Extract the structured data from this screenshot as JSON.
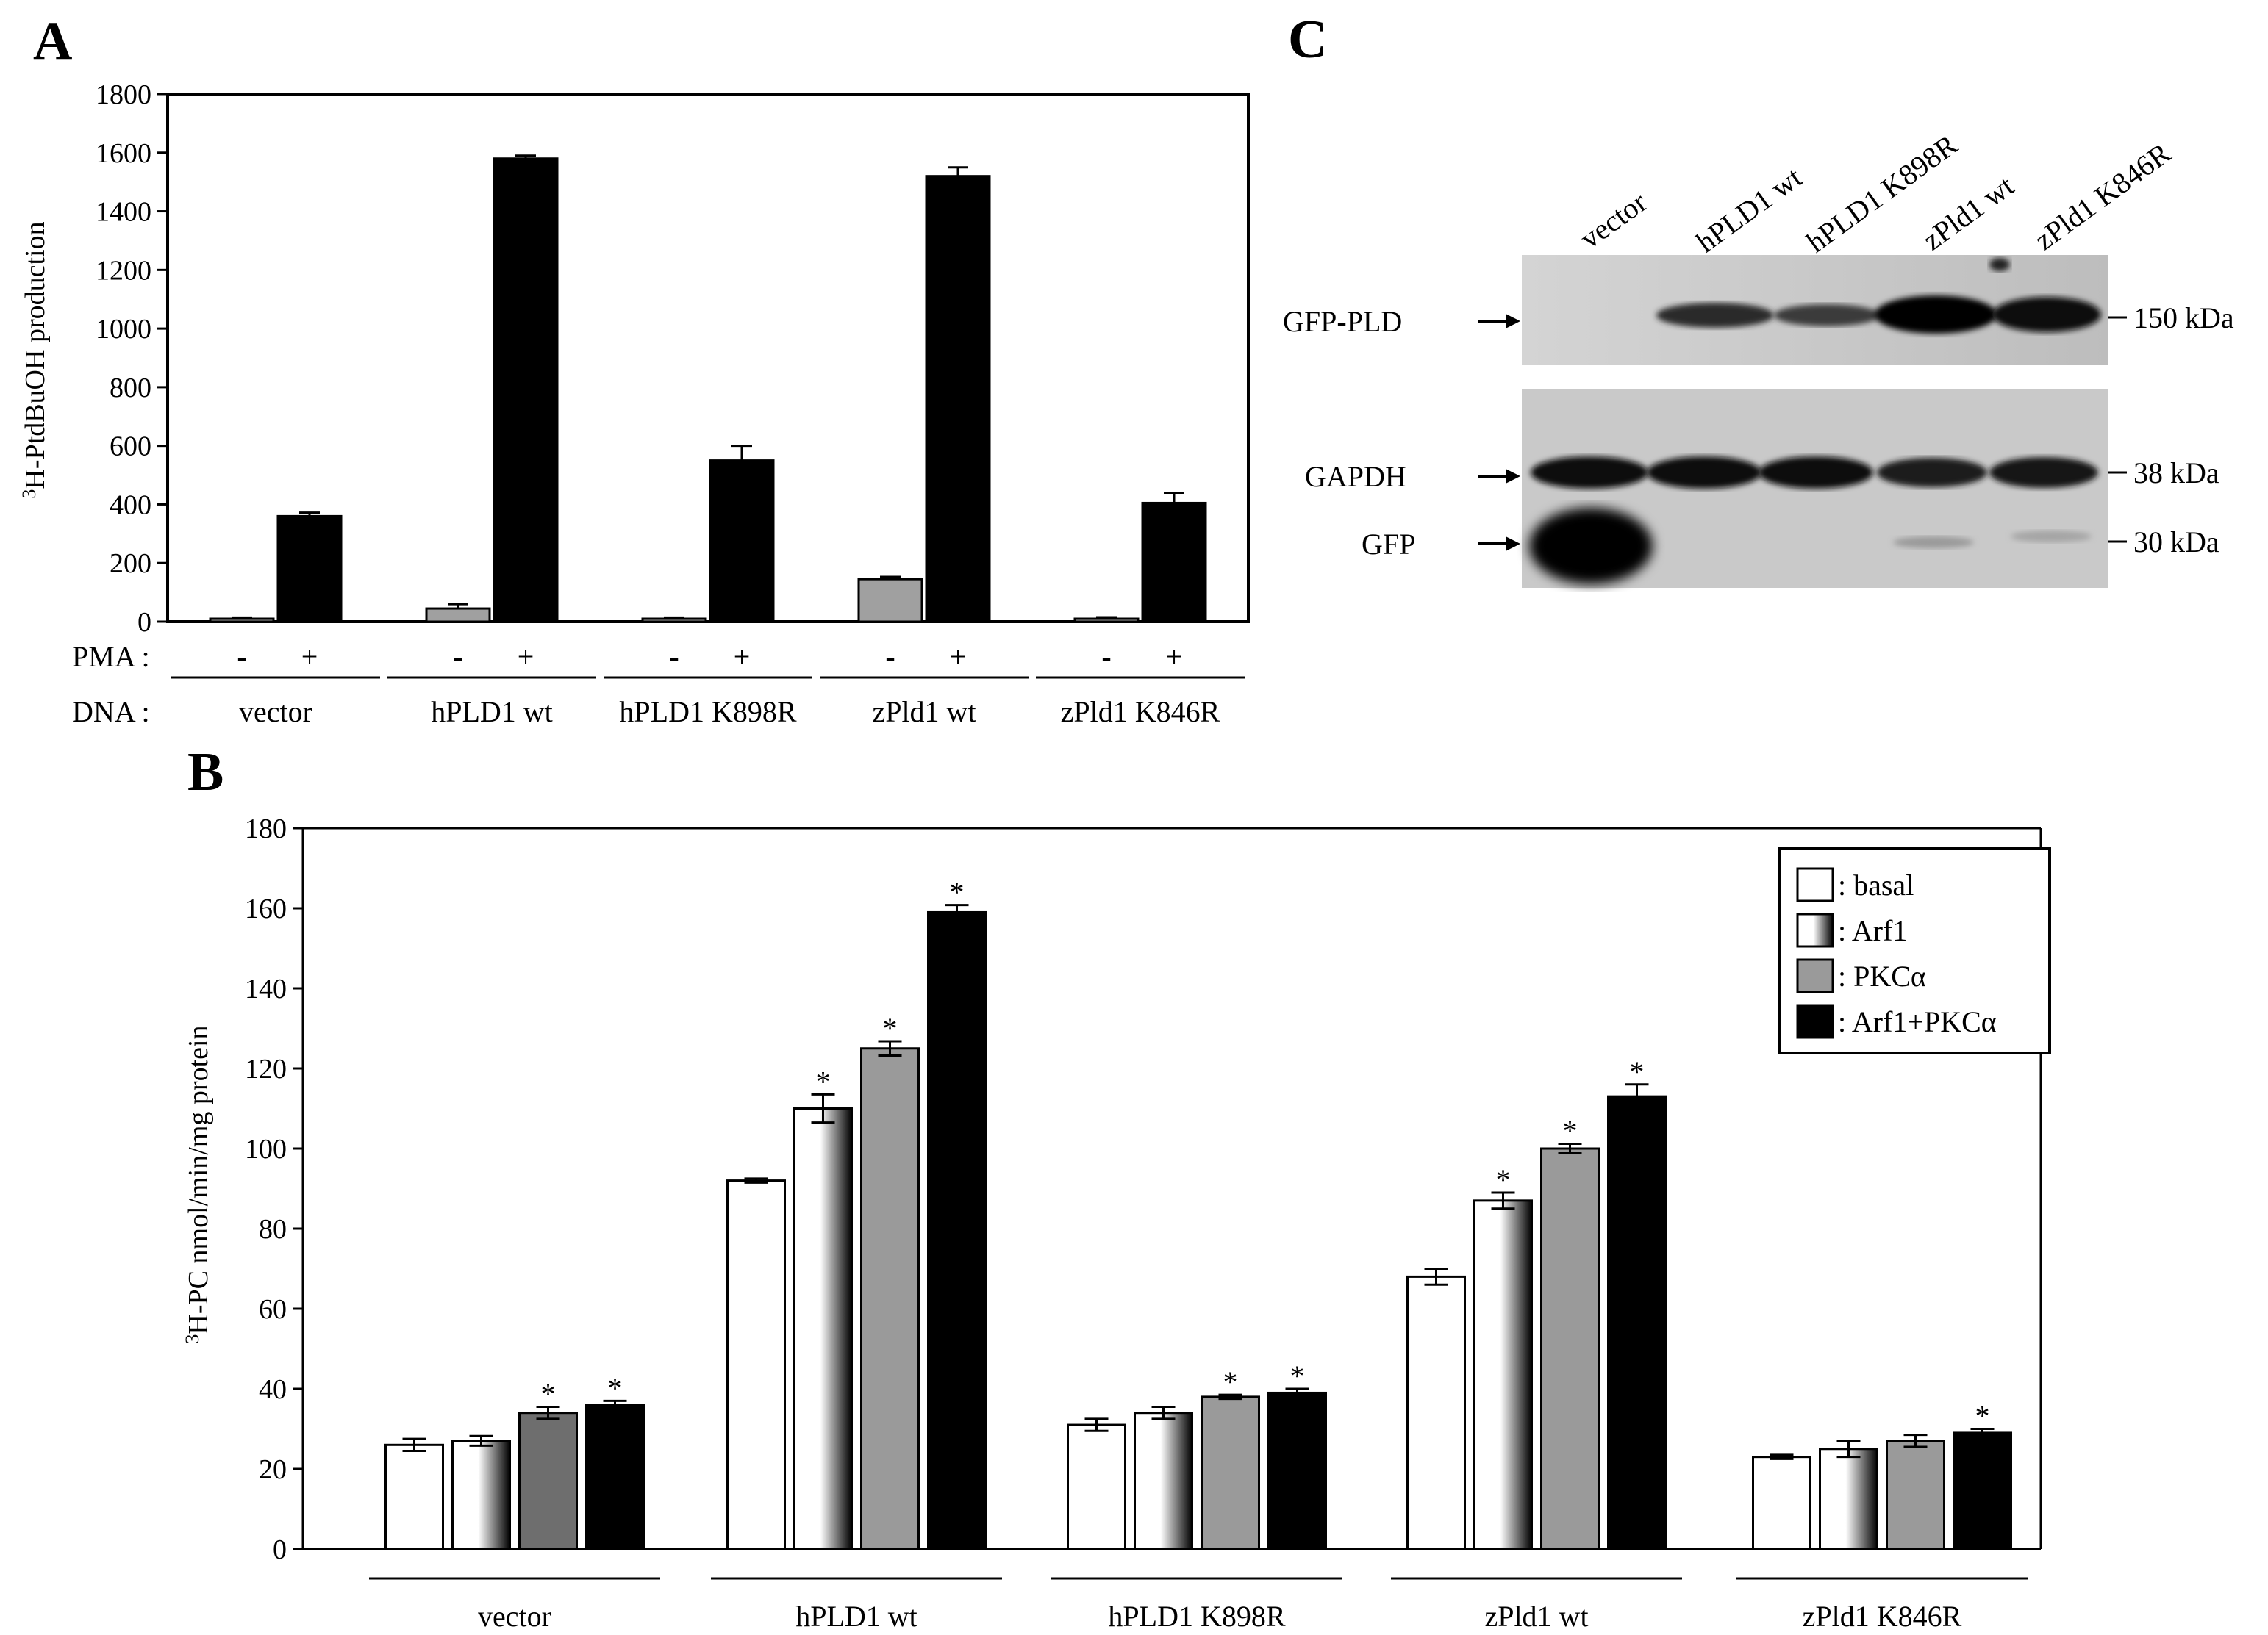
{
  "panels": {
    "a": "A",
    "b": "B",
    "c": "C"
  },
  "chart_data": [
    {
      "type": "bar",
      "panel": "A",
      "ylabel_sup": "3",
      "ylabel": "H-PtdBuOH production",
      "ylim": [
        0,
        1800
      ],
      "yticks": [
        0,
        200,
        400,
        600,
        800,
        1000,
        1200,
        1400,
        1600,
        1800
      ],
      "row1_label": "PMA :",
      "row2_label": "DNA :",
      "pma_minus": "-",
      "pma_plus": "+",
      "categories": [
        "vector",
        "hPLD1 wt",
        "hPLD1 K898R",
        "zPld1 wt",
        "zPld1 K846R"
      ],
      "series": [
        {
          "name": "-",
          "color": "#a0a0a0",
          "values": [
            10,
            45,
            10,
            145,
            10
          ],
          "errors": [
            4,
            15,
            4,
            8,
            5
          ]
        },
        {
          "name": "+",
          "color": "#000000",
          "values": [
            360,
            1580,
            550,
            1520,
            405
          ],
          "errors": [
            12,
            10,
            50,
            30,
            35
          ]
        }
      ]
    },
    {
      "type": "bar",
      "panel": "B",
      "ylabel_sup": "3",
      "ylabel": "H-PC nmol/min/mg protein",
      "ylim": [
        0,
        180
      ],
      "yticks": [
        0,
        20,
        40,
        60,
        80,
        100,
        120,
        140,
        160,
        180
      ],
      "categories": [
        "vector",
        "hPLD1 wt",
        "hPLD1 K898R",
        "zPld1 wt",
        "zPld1 K846R"
      ],
      "series": [
        {
          "name": ": basal",
          "fill": "white",
          "values": [
            26,
            92,
            31,
            68,
            23
          ],
          "errors": [
            1.5,
            0.5,
            1.5,
            2.0,
            0.5
          ],
          "sig": [
            false,
            false,
            false,
            false,
            false
          ]
        },
        {
          "name": ": Arf1",
          "fill": "gradient",
          "values": [
            27,
            110,
            34,
            87,
            25
          ],
          "errors": [
            1.2,
            3.5,
            1.5,
            2.0,
            2.0
          ],
          "sig": [
            false,
            true,
            false,
            true,
            false
          ]
        },
        {
          "name": ": PKCα",
          "fill": "#9a9a9a",
          "values": [
            34,
            125,
            38,
            100,
            27
          ],
          "errors": [
            1.5,
            1.8,
            0.5,
            1.2,
            1.5
          ],
          "sig": [
            true,
            true,
            true,
            true,
            false
          ]
        },
        {
          "name": ": Arf1+PKCα",
          "fill": "#000000",
          "values": [
            36,
            159,
            39,
            113,
            29
          ],
          "errors": [
            1.0,
            1.8,
            1.0,
            3.0,
            1.0
          ],
          "sig": [
            true,
            true,
            true,
            true,
            true
          ]
        }
      ],
      "sig_marker": "*",
      "legend_position": "top-right"
    }
  ],
  "blot": {
    "lanes": [
      "vector",
      "hPLD1 wt",
      "hPLD1 K898R",
      "zPld1 wt",
      "zPld1 K846R"
    ],
    "row_labels": [
      "GFP-PLD",
      "GAPDH",
      "GFP"
    ],
    "markers": [
      "150 kDa",
      "38 kDa",
      "30 kDa"
    ]
  }
}
